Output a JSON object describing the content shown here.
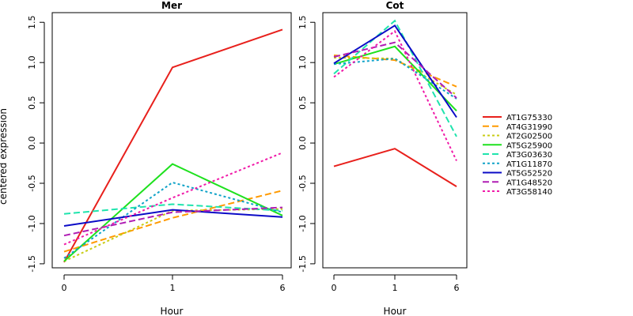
{
  "chart_data": {
    "type": "line",
    "ylabel": "centered expression",
    "ylim": [
      -1.55,
      1.62
    ],
    "yticks": [
      -1.5,
      -1.0,
      -0.5,
      0.0,
      0.5,
      1.0,
      1.5
    ],
    "ytick_labels": [
      "-1.5",
      "-1.0",
      "-0.5",
      "0.0",
      "0.5",
      "1.0",
      "1.5"
    ],
    "legend_position": "right",
    "panels": [
      {
        "title": "Mer",
        "xlabel": "Hour",
        "categories": [
          "0",
          "1",
          "6"
        ],
        "series": [
          {
            "name": "AT1G75330",
            "values": [
              -1.48,
              0.94,
              1.41
            ]
          },
          {
            "name": "AT4G31990",
            "values": [
              -1.35,
              -0.93,
              -0.59
            ]
          },
          {
            "name": "AT2G02500",
            "values": [
              -1.47,
              -0.84,
              -0.82
            ]
          },
          {
            "name": "AT5G25900",
            "values": [
              -1.47,
              -0.26,
              -0.9
            ]
          },
          {
            "name": "AT3G03630",
            "values": [
              -0.88,
              -0.76,
              -0.84
            ]
          },
          {
            "name": "AT1G11870",
            "values": [
              -1.43,
              -0.49,
              -0.86
            ]
          },
          {
            "name": "AT5G52520",
            "values": [
              -1.03,
              -0.83,
              -0.92
            ]
          },
          {
            "name": "AT1G48520",
            "values": [
              -1.15,
              -0.86,
              -0.8
            ]
          },
          {
            "name": "AT3G58140",
            "values": [
              -1.26,
              -0.68,
              -0.12
            ]
          }
        ]
      },
      {
        "title": "Cot",
        "xlabel": "Hour",
        "categories": [
          "0",
          "1",
          "6"
        ],
        "series": [
          {
            "name": "AT1G75330",
            "values": [
              -0.29,
              -0.07,
              -0.54
            ]
          },
          {
            "name": "AT4G31990",
            "values": [
              1.09,
              1.03,
              0.7
            ]
          },
          {
            "name": "AT2G02500",
            "values": [
              1.06,
              1.05,
              0.6
            ]
          },
          {
            "name": "AT5G25900",
            "values": [
              0.98,
              1.2,
              0.4
            ]
          },
          {
            "name": "AT3G03630",
            "values": [
              0.86,
              1.52,
              0.08
            ]
          },
          {
            "name": "AT1G11870",
            "values": [
              0.98,
              1.05,
              0.55
            ]
          },
          {
            "name": "AT5G52520",
            "values": [
              0.99,
              1.46,
              0.32
            ]
          },
          {
            "name": "AT1G48520",
            "values": [
              1.07,
              1.25,
              0.56
            ]
          },
          {
            "name": "AT3G58140",
            "values": [
              0.82,
              1.39,
              -0.22
            ]
          }
        ]
      }
    ],
    "styles": [
      {
        "color": "#e8201c",
        "dash": "solid"
      },
      {
        "color": "#ff9a00",
        "dash": "dashed"
      },
      {
        "color": "#c8cc14",
        "dash": "dotted"
      },
      {
        "color": "#1ee11e",
        "dash": "solid"
      },
      {
        "color": "#1fe4ad",
        "dash": "dashed"
      },
      {
        "color": "#10a3c8",
        "dash": "dotted"
      },
      {
        "color": "#0b0bc6",
        "dash": "solid"
      },
      {
        "color": "#b01eb4",
        "dash": "dashed"
      },
      {
        "color": "#f01aa8",
        "dash": "dotted"
      }
    ]
  }
}
